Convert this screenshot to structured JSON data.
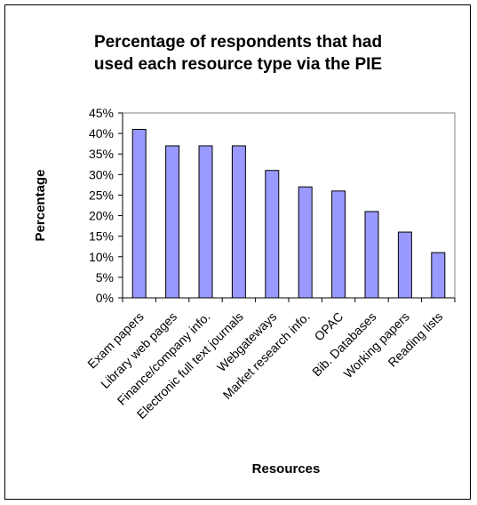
{
  "chart_data": {
    "type": "bar",
    "title": [
      "Percentage of respondents that had",
      "used each resource type via the PIE"
    ],
    "xlabel": "Resources",
    "ylabel": "Percentage",
    "categories": [
      "Exam papers",
      "Library web pages",
      "Finance/company info.",
      "Electronic full text journals",
      "Webgateways",
      "Market research info.",
      "OPAC",
      "Bib. Databases",
      "Working papers",
      "Reading lists"
    ],
    "values": [
      41,
      37,
      37,
      37,
      31,
      27,
      26,
      21,
      16,
      11
    ],
    "ylim": [
      0,
      45
    ],
    "yticks": [
      0,
      5,
      10,
      15,
      20,
      25,
      30,
      35,
      40,
      45
    ],
    "ytick_labels": [
      "0%",
      "5%",
      "10%",
      "15%",
      "20%",
      "25%",
      "30%",
      "35%",
      "40%",
      "45%"
    ],
    "grid": false,
    "legend": "none",
    "bar_color": "#9999ff",
    "bar_edge_color": "#000000"
  }
}
